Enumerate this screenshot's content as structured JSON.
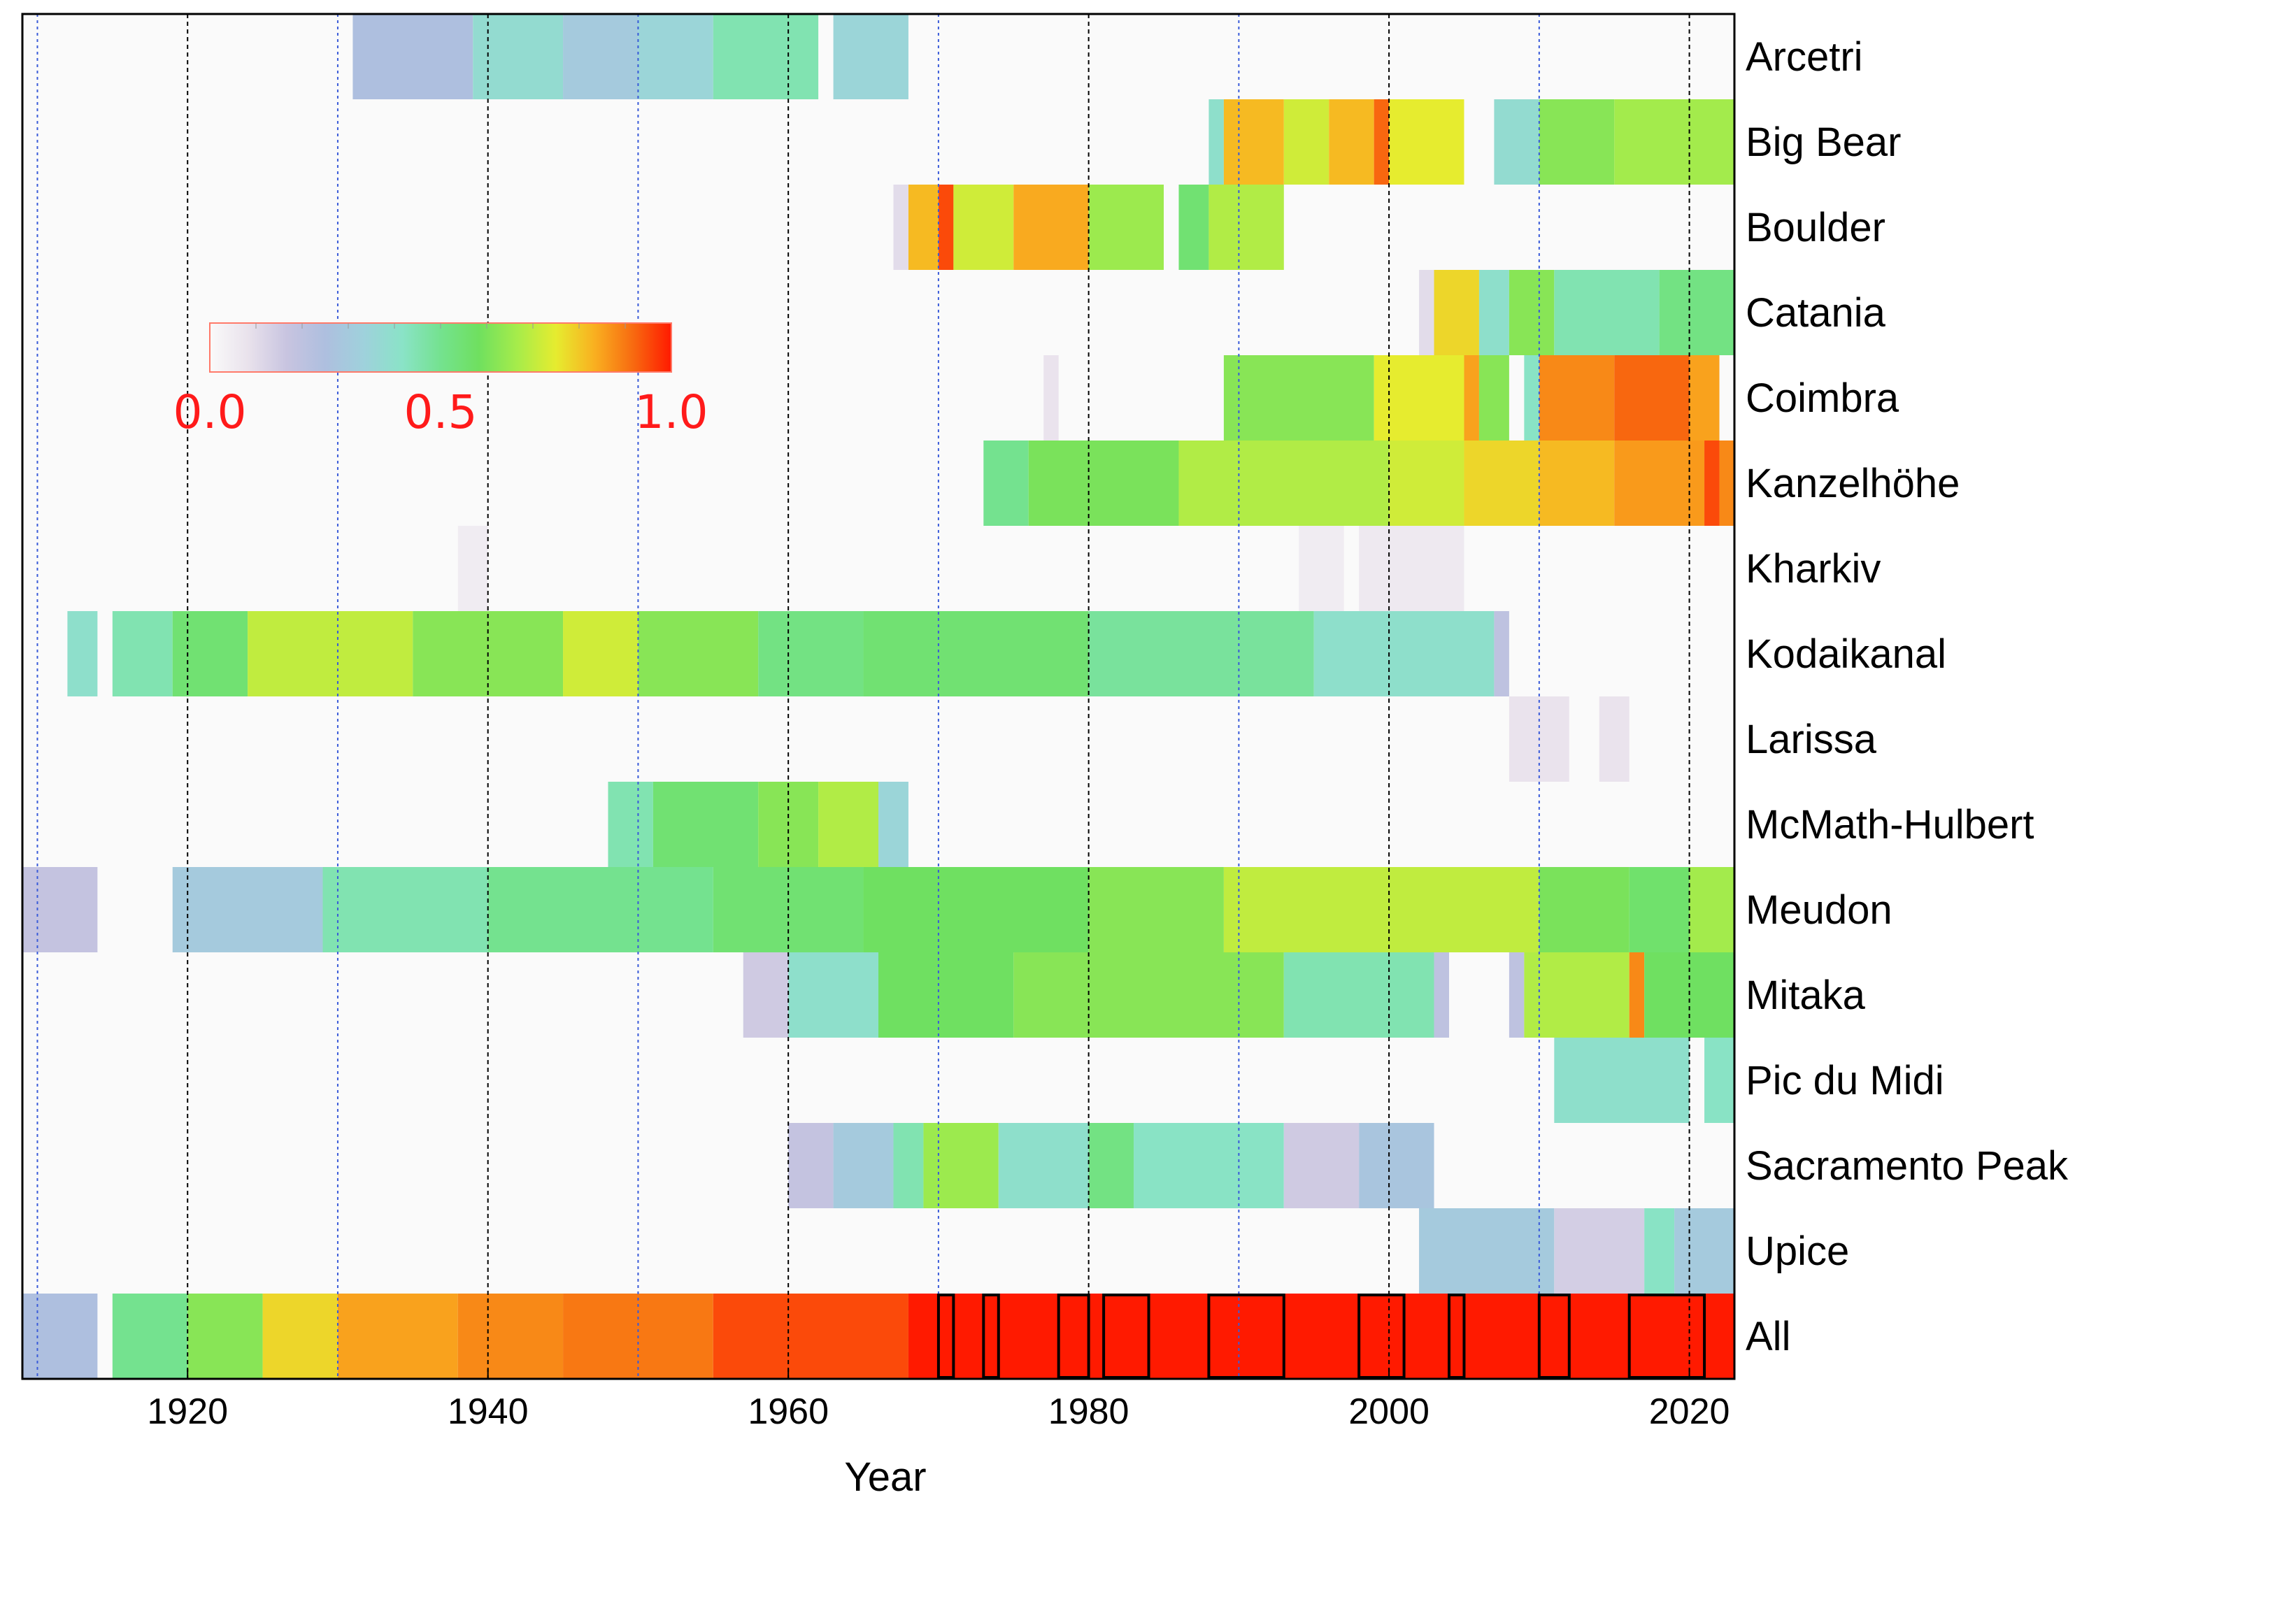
{
  "chart_data": {
    "type": "heatmap",
    "xlabel": "Year",
    "ylabel": "",
    "x_range": [
      1909,
      2023
    ],
    "x_ticks": [
      "1920",
      "1940",
      "1960",
      "1980",
      "2000",
      "2020"
    ],
    "x_tick_values": [
      1920,
      1940,
      1960,
      1980,
      2000,
      2020
    ],
    "grid": {
      "black_dashed_every": 20,
      "blue_dotted_every": 20,
      "black_years": [
        1920,
        1940,
        1960,
        1980,
        2000,
        2020
      ],
      "blue_years": [
        1910,
        1930,
        1950,
        1970,
        1990,
        2010
      ]
    },
    "colorbar": {
      "range": [
        0.0,
        1.0
      ],
      "tick_labels": [
        "0.0",
        "0.5",
        "1.0"
      ],
      "colors": [
        "#fafafa",
        "#e9e2ec",
        "#c8c4e0",
        "#aebfdf",
        "#9fd1dc",
        "#8ae3c7",
        "#74e28f",
        "#6fe05f",
        "#a7ec4a",
        "#e6ec2f",
        "#f9b020",
        "#f86a10",
        "#ff1a00"
      ],
      "placement": "inside upper-left"
    },
    "rows": [
      {
        "name": "Arcetri",
        "segments": [
          [
            1931,
            1939,
            0.25
          ],
          [
            1939,
            1945,
            0.38
          ],
          [
            1945,
            1950,
            0.3
          ],
          [
            1950,
            1955,
            0.35
          ],
          [
            1955,
            1962,
            0.45
          ],
          [
            1963,
            1968,
            0.35
          ]
        ]
      },
      {
        "name": "Big Bear",
        "segments": [
          [
            1988,
            1989,
            0.4
          ],
          [
            1989,
            1993,
            0.82
          ],
          [
            1993,
            1996,
            0.72
          ],
          [
            1996,
            1999,
            0.82
          ],
          [
            1999,
            2000,
            0.92
          ],
          [
            2000,
            2005,
            0.75
          ],
          [
            2007,
            2010,
            0.38
          ],
          [
            2010,
            2015,
            0.62
          ],
          [
            2015,
            2023,
            0.66
          ]
        ]
      },
      {
        "name": "Boulder",
        "segments": [
          [
            1967,
            1968,
            0.1
          ],
          [
            1968,
            1970,
            0.82
          ],
          [
            1970,
            1971,
            0.95
          ],
          [
            1971,
            1975,
            0.72
          ],
          [
            1975,
            1980,
            0.84
          ],
          [
            1980,
            1985,
            0.65
          ],
          [
            1986,
            1988,
            0.55
          ],
          [
            1988,
            1993,
            0.68
          ]
        ]
      },
      {
        "name": "Catania",
        "segments": [
          [
            2002,
            2003,
            0.1
          ],
          [
            2003,
            2006,
            0.78
          ],
          [
            2006,
            2008,
            0.4
          ],
          [
            2008,
            2011,
            0.62
          ],
          [
            2011,
            2018,
            0.45
          ],
          [
            2018,
            2023,
            0.52
          ]
        ]
      },
      {
        "name": "Coimbra",
        "segments": [
          [
            1977,
            1978,
            0.08
          ],
          [
            1989,
            1999,
            0.62
          ],
          [
            1999,
            2005,
            0.75
          ],
          [
            2005,
            2006,
            0.85
          ],
          [
            2006,
            2008,
            0.62
          ],
          [
            2009,
            2010,
            0.42
          ],
          [
            2010,
            2015,
            0.88
          ],
          [
            2015,
            2020,
            0.92
          ],
          [
            2020,
            2022,
            0.85
          ]
        ]
      },
      {
        "name": "Kanzelhöhe",
        "segments": [
          [
            1973,
            1976,
            0.5
          ],
          [
            1976,
            1986,
            0.6
          ],
          [
            1986,
            2000,
            0.68
          ],
          [
            2000,
            2005,
            0.72
          ],
          [
            2005,
            2010,
            0.78
          ],
          [
            2010,
            2015,
            0.82
          ],
          [
            2015,
            2021,
            0.86
          ],
          [
            2021,
            2022,
            0.95
          ],
          [
            2022,
            2023,
            0.88
          ]
        ]
      },
      {
        "name": "Kharkiv",
        "segments": [
          [
            1938,
            1940,
            0.05
          ],
          [
            1994,
            1997,
            0.05
          ],
          [
            1998,
            2005,
            0.06
          ]
        ]
      },
      {
        "name": "Kodaikanal",
        "segments": [
          [
            1912,
            1914,
            0.4
          ],
          [
            1915,
            1919,
            0.45
          ],
          [
            1919,
            1924,
            0.55
          ],
          [
            1924,
            1935,
            0.7
          ],
          [
            1935,
            1945,
            0.62
          ],
          [
            1945,
            1950,
            0.72
          ],
          [
            1950,
            1958,
            0.62
          ],
          [
            1958,
            1965,
            0.52
          ],
          [
            1965,
            1980,
            0.55
          ],
          [
            1980,
            1995,
            0.48
          ],
          [
            1995,
            2007,
            0.4
          ],
          [
            2007,
            2008,
            0.2
          ]
        ]
      },
      {
        "name": "Larissa",
        "segments": [
          [
            2008,
            2012,
            0.08
          ],
          [
            2014,
            2016,
            0.08
          ]
        ]
      },
      {
        "name": "McMath-Hulbert",
        "segments": [
          [
            1948,
            1951,
            0.45
          ],
          [
            1951,
            1958,
            0.55
          ],
          [
            1958,
            1962,
            0.62
          ],
          [
            1962,
            1966,
            0.68
          ],
          [
            1966,
            1968,
            0.35
          ]
        ]
      },
      {
        "name": "Meudon",
        "segments": [
          [
            1909,
            1914,
            0.18
          ],
          [
            1919,
            1929,
            0.3
          ],
          [
            1929,
            1940,
            0.45
          ],
          [
            1940,
            1955,
            0.5
          ],
          [
            1955,
            1965,
            0.55
          ],
          [
            1965,
            1980,
            0.58
          ],
          [
            1980,
            1989,
            0.62
          ],
          [
            1989,
            2010,
            0.7
          ],
          [
            2010,
            2016,
            0.6
          ],
          [
            2016,
            2020,
            0.56
          ],
          [
            2020,
            2023,
            0.66
          ]
        ]
      },
      {
        "name": "Mitaka",
        "segments": [
          [
            1957,
            1960,
            0.15
          ],
          [
            1960,
            1966,
            0.4
          ],
          [
            1966,
            1975,
            0.58
          ],
          [
            1975,
            1993,
            0.62
          ],
          [
            1993,
            2003,
            0.45
          ],
          [
            2003,
            2004,
            0.2
          ],
          [
            2008,
            2009,
            0.2
          ],
          [
            2009,
            2016,
            0.68
          ],
          [
            2016,
            2017,
            0.88
          ],
          [
            2017,
            2023,
            0.58
          ]
        ]
      },
      {
        "name": "Pic du Midi",
        "segments": [
          [
            2011,
            2020,
            0.4
          ],
          [
            2021,
            2023,
            0.42
          ]
        ]
      },
      {
        "name": "Sacramento Peak",
        "segments": [
          [
            1960,
            1963,
            0.18
          ],
          [
            1963,
            1967,
            0.3
          ],
          [
            1967,
            1969,
            0.45
          ],
          [
            1969,
            1974,
            0.65
          ],
          [
            1974,
            1980,
            0.4
          ],
          [
            1980,
            1983,
            0.52
          ],
          [
            1983,
            1993,
            0.42
          ],
          [
            1993,
            1998,
            0.15
          ],
          [
            1998,
            2003,
            0.28
          ]
        ]
      },
      {
        "name": "Upice",
        "segments": [
          [
            2002,
            2011,
            0.3
          ],
          [
            2011,
            2017,
            0.14
          ],
          [
            2017,
            2019,
            0.42
          ],
          [
            2019,
            2023,
            0.3
          ]
        ]
      },
      {
        "name": "All",
        "segments": [
          [
            1909,
            1914,
            0.25
          ],
          [
            1915,
            1920,
            0.5
          ],
          [
            1920,
            1925,
            0.62
          ],
          [
            1925,
            1930,
            0.78
          ],
          [
            1930,
            1938,
            0.85
          ],
          [
            1938,
            1945,
            0.88
          ],
          [
            1945,
            1955,
            0.9
          ],
          [
            1955,
            1968,
            0.95
          ],
          [
            1968,
            2023,
            1.0
          ]
        ],
        "boxes": [
          [
            1970,
            1971
          ],
          [
            1973,
            1974
          ],
          [
            1978,
            1980
          ],
          [
            1981,
            1984
          ],
          [
            1988,
            1993
          ],
          [
            1998,
            2001
          ],
          [
            2004,
            2005
          ],
          [
            2010,
            2012
          ],
          [
            2016,
            2021
          ]
        ]
      }
    ]
  }
}
